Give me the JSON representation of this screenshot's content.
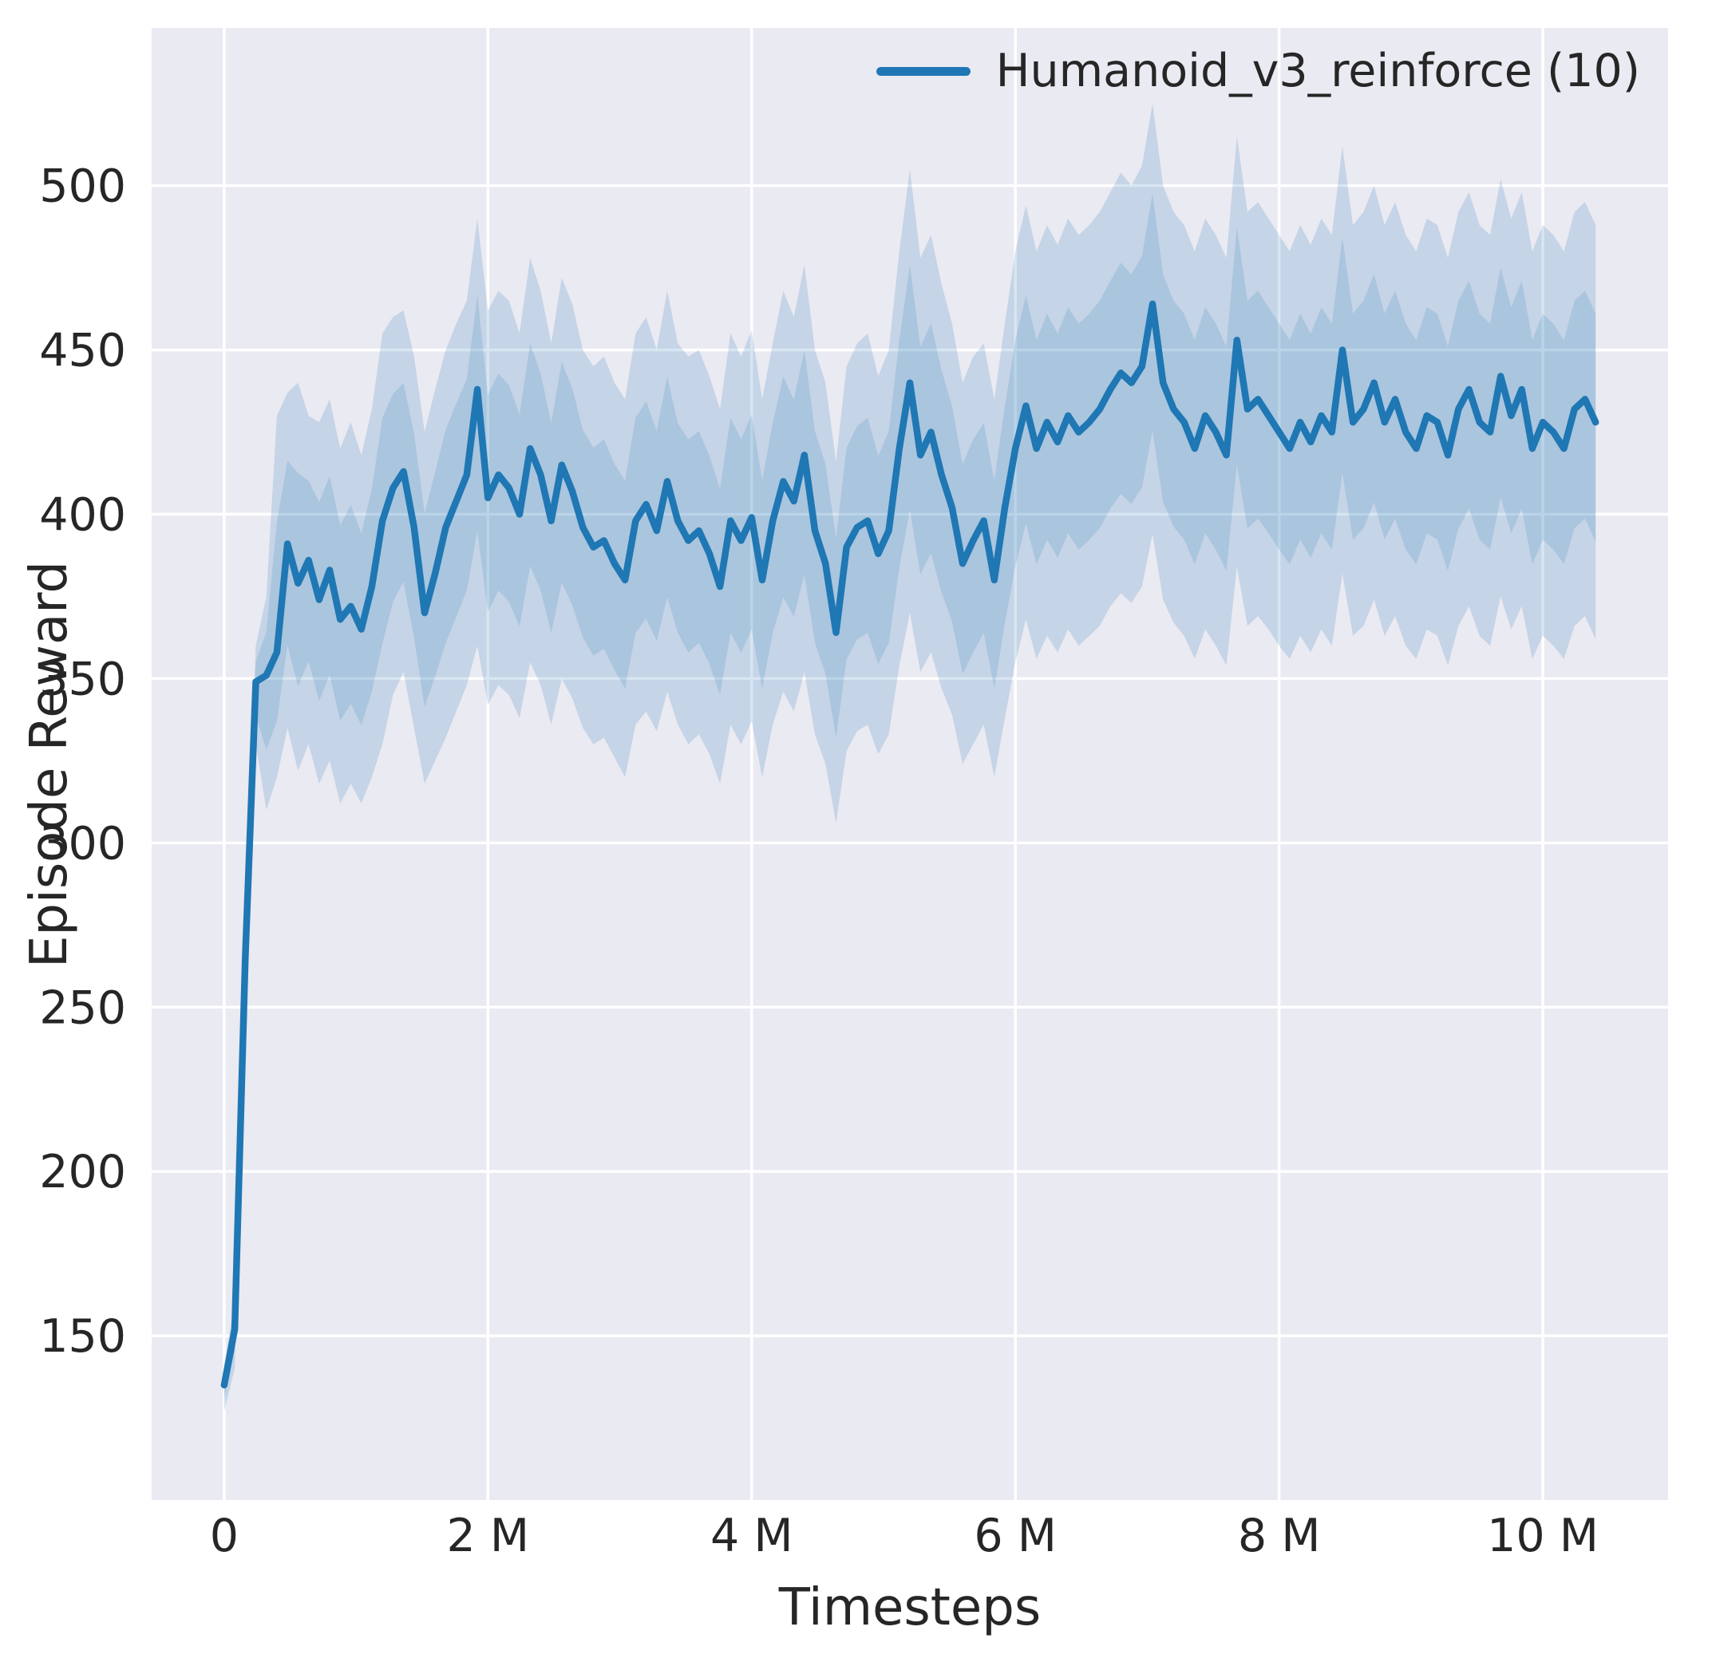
{
  "colors": {
    "background": "#ffffff",
    "axes_bg": "#eaeaf2",
    "grid": "#ffffff",
    "line": "#1f77b4",
    "text": "#262626",
    "band_outer_opacity": 0.18,
    "band_inner_opacity": 0.16
  },
  "chart_data": {
    "type": "line",
    "title": "",
    "xlabel": "Timesteps",
    "ylabel": "Episode Reward",
    "legend": [
      {
        "label": "Humanoid_v3_reinforce (10)",
        "color": "#1f77b4"
      }
    ],
    "legend_position": "upper right",
    "grid": true,
    "xlim": [
      -0.55,
      10.95
    ],
    "ylim": [
      100,
      548
    ],
    "x_unit": "millions of timesteps",
    "x_ticks": [
      0,
      2,
      4,
      6,
      8,
      10
    ],
    "x_tick_labels": [
      "0",
      "2 M",
      "4 M",
      "6 M",
      "8 M",
      "10 M"
    ],
    "y_ticks": [
      150,
      200,
      250,
      300,
      350,
      400,
      450,
      500
    ],
    "y_tick_labels": [
      "150",
      "200",
      "250",
      "300",
      "350",
      "400",
      "450",
      "500"
    ],
    "x_start": 0,
    "x_step": 0.08,
    "series": [
      {
        "name": "Humanoid_v3_reinforce (10)",
        "mean": [
          135,
          152,
          265,
          349,
          351,
          358,
          391,
          379,
          386,
          374,
          383,
          368,
          372,
          365,
          378,
          398,
          408,
          413,
          396,
          370,
          382,
          396,
          404,
          412,
          438,
          405,
          412,
          408,
          400,
          420,
          412,
          398,
          415,
          407,
          396,
          390,
          392,
          385,
          380,
          398,
          403,
          395,
          410,
          398,
          392,
          395,
          388,
          378,
          398,
          392,
          399,
          380,
          398,
          410,
          404,
          418,
          395,
          385,
          364,
          390,
          396,
          398,
          388,
          395,
          420,
          440,
          418,
          425,
          412,
          402,
          385,
          392,
          398,
          380,
          402,
          420,
          433,
          420,
          428,
          422,
          430,
          425,
          428,
          432,
          438,
          443,
          440,
          445,
          464,
          440,
          432,
          428,
          420,
          430,
          425,
          418,
          453,
          432,
          435,
          430,
          425,
          420,
          428,
          422,
          430,
          425,
          450,
          428,
          432,
          440,
          428,
          435,
          425,
          420,
          430,
          428,
          418,
          432,
          438,
          428,
          425,
          442,
          430,
          438,
          420,
          428,
          425,
          420,
          432,
          435,
          428
        ],
        "band_lower": [
          127,
          140,
          245,
          330,
          310,
          320,
          335,
          322,
          330,
          318,
          325,
          312,
          318,
          312,
          320,
          330,
          345,
          352,
          335,
          318,
          325,
          332,
          340,
          348,
          360,
          342,
          348,
          345,
          338,
          355,
          348,
          336,
          350,
          344,
          335,
          330,
          332,
          326,
          320,
          336,
          340,
          334,
          346,
          336,
          330,
          333,
          327,
          318,
          336,
          330,
          337,
          320,
          336,
          346,
          340,
          352,
          333,
          324,
          306,
          328,
          334,
          336,
          327,
          333,
          354,
          370,
          352,
          358,
          347,
          339,
          324,
          330,
          336,
          320,
          338,
          355,
          368,
          356,
          363,
          358,
          365,
          360,
          363,
          366,
          372,
          376,
          373,
          378,
          394,
          374,
          367,
          363,
          356,
          365,
          360,
          354,
          384,
          366,
          369,
          365,
          360,
          356,
          363,
          358,
          365,
          360,
          382,
          363,
          366,
          374,
          363,
          369,
          360,
          356,
          365,
          363,
          354,
          366,
          372,
          363,
          360,
          375,
          365,
          372,
          356,
          363,
          360,
          356,
          366,
          369,
          362
        ],
        "band_upper": [
          141,
          160,
          280,
          360,
          375,
          430,
          437,
          440,
          430,
          428,
          435,
          420,
          428,
          418,
          432,
          455,
          460,
          462,
          448,
          425,
          438,
          450,
          458,
          465,
          490,
          462,
          468,
          465,
          455,
          478,
          468,
          452,
          472,
          464,
          450,
          445,
          448,
          440,
          435,
          455,
          460,
          450,
          468,
          452,
          448,
          450,
          442,
          432,
          455,
          448,
          456,
          435,
          452,
          468,
          460,
          476,
          450,
          440,
          416,
          445,
          452,
          455,
          442,
          450,
          480,
          505,
          478,
          485,
          470,
          458,
          440,
          448,
          452,
          435,
          458,
          480,
          494,
          480,
          488,
          482,
          490,
          485,
          488,
          492,
          498,
          504,
          500,
          506,
          525,
          500,
          492,
          488,
          480,
          490,
          485,
          478,
          515,
          492,
          495,
          490,
          485,
          480,
          488,
          482,
          490,
          485,
          512,
          488,
          492,
          500,
          488,
          495,
          485,
          480,
          490,
          488,
          478,
          492,
          498,
          488,
          485,
          502,
          490,
          498,
          480,
          488,
          485,
          480,
          492,
          495,
          488
        ]
      }
    ]
  }
}
